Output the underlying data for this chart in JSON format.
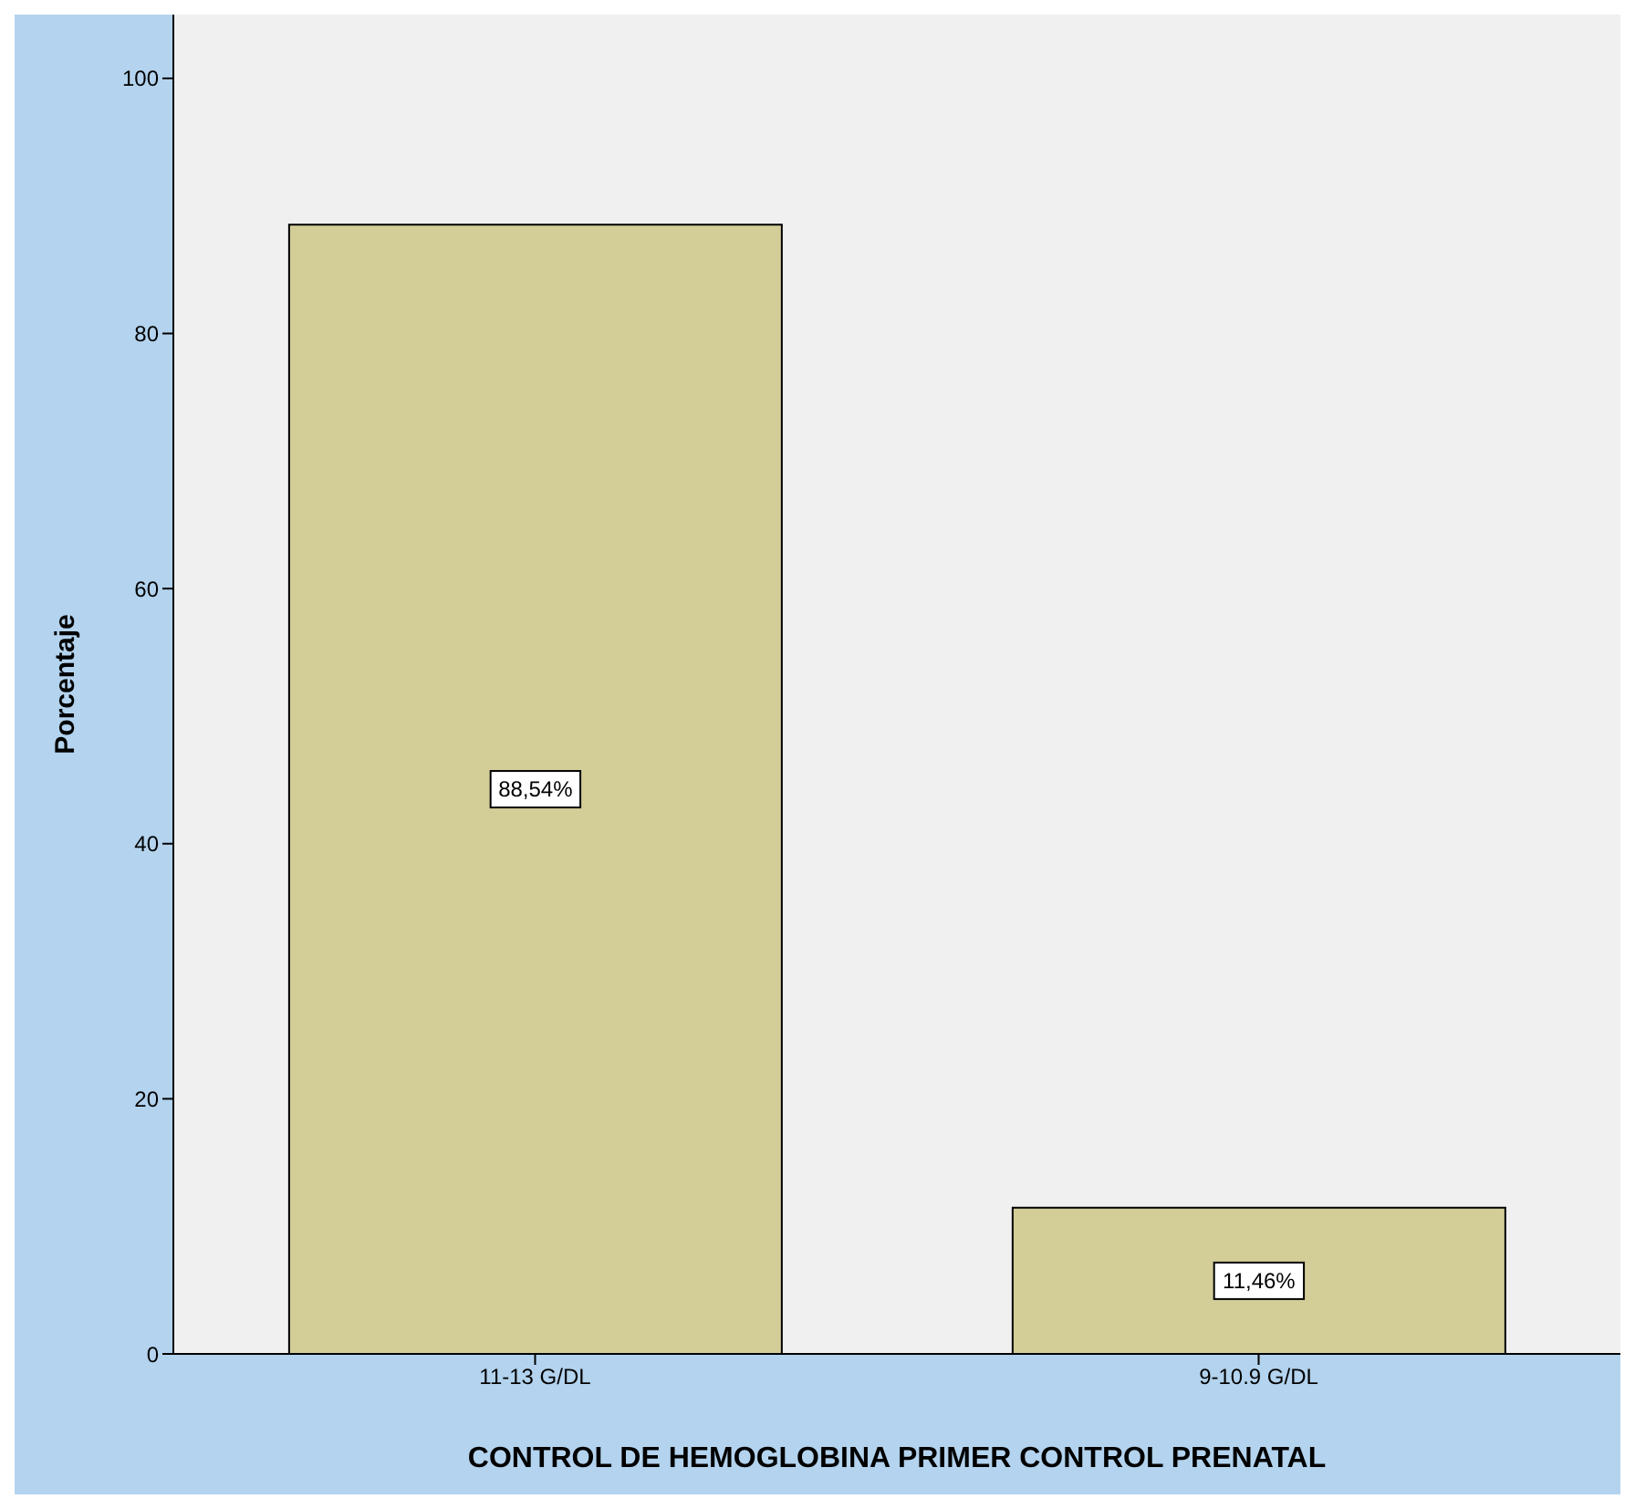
{
  "chart_data": {
    "type": "bar",
    "xlabel": "CONTROL DE HEMOGLOBINA PRIMER CONTROL PRENATAL",
    "ylabel": "Porcentaje",
    "categories": [
      "11-13 G/DL",
      "9-10.9 G/DL"
    ],
    "values": [
      88.54,
      11.46
    ],
    "value_labels": [
      "88,54%",
      "11,46%"
    ],
    "color": "#d3cd98",
    "ylim": [
      0,
      105
    ],
    "yticks": [
      0,
      20,
      40,
      60,
      80,
      100
    ]
  }
}
